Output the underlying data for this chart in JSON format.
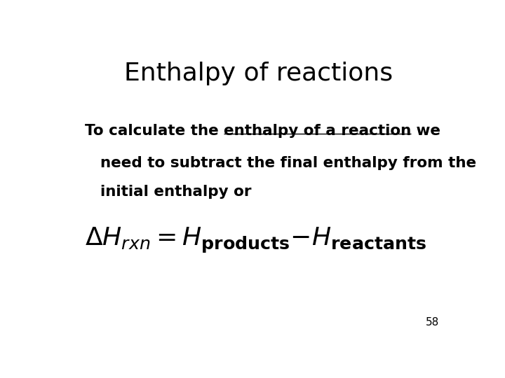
{
  "title": "Enthalpy of reactions",
  "title_fontsize": 26,
  "background_color": "#ffffff",
  "text_color": "#000000",
  "body_part1": "To calculate the ",
  "body_underline": "enthalpy of a reaction",
  "body_part2": " we",
  "body_line2": "need to subtract the final enthalpy from the",
  "body_line3": "initial enthalpy or",
  "body_fontsize": 15.5,
  "page_number": "58",
  "page_number_fontsize": 11
}
